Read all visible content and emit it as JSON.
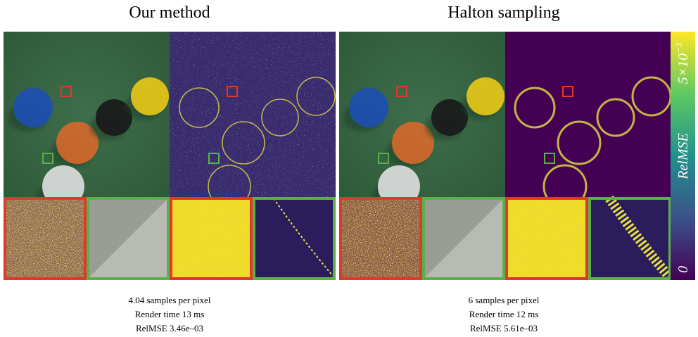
{
  "panels": [
    {
      "title": "Our method",
      "caption": [
        "4.04 samples per pixel",
        "Render time 13 ms",
        "RelMSE 3.46e–03"
      ]
    },
    {
      "title": "Halton sampling",
      "caption": [
        "6 samples per pixel",
        "Render time 12 ms",
        "RelMSE 5.61e–03"
      ]
    }
  ],
  "colorbar": {
    "max_label": "5×10",
    "max_exponent": "−3",
    "name": "RelMSE",
    "min_label": "0"
  }
}
